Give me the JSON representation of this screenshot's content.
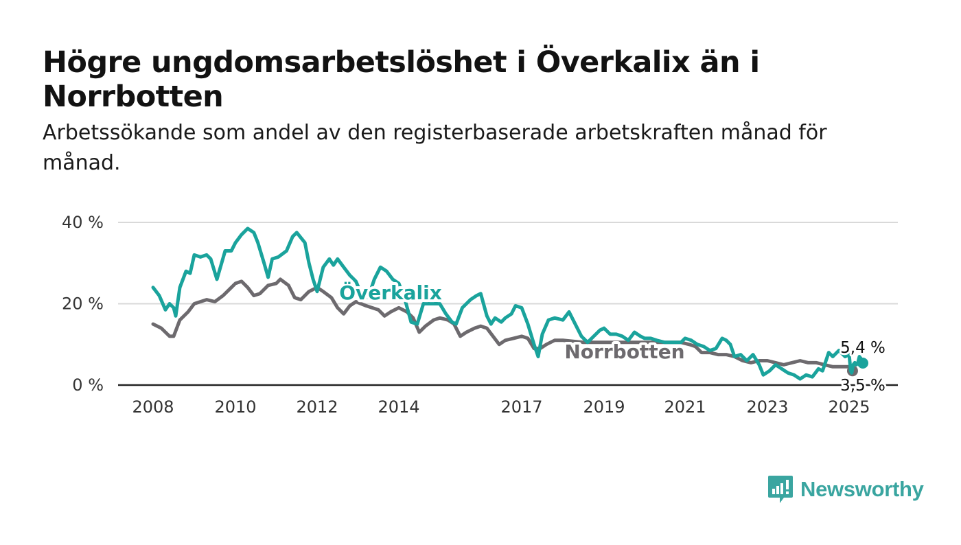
{
  "title": "Högre ungdomsarbetslöshet i Överkalix än i Norrbotten",
  "subtitle": "Arbetssökande som andel av den registerbaserade arbetskraften månad för månad.",
  "brand": {
    "name": "Newsworthy",
    "icon": "newsworthy-logo-icon",
    "color": "#3aa5a0"
  },
  "chart_data": {
    "type": "line",
    "ylim": [
      0,
      40
    ],
    "y_ticks": [
      0,
      20,
      40
    ],
    "y_tick_labels": [
      "0 %",
      "20 %",
      "40 %"
    ],
    "xlim": [
      2008.0,
      2025.5
    ],
    "x_ticks": [
      2008,
      2010,
      2012,
      2014,
      2017,
      2019,
      2021,
      2023,
      2025
    ],
    "grid": true,
    "series": [
      {
        "name": "Norrbotten",
        "color": "#6d6a6e",
        "end_label": "3,5 %",
        "points": [
          [
            2008.0,
            15
          ],
          [
            2008.2,
            14
          ],
          [
            2008.4,
            12
          ],
          [
            2008.5,
            12
          ],
          [
            2008.65,
            16
          ],
          [
            2008.85,
            18
          ],
          [
            2009.0,
            20
          ],
          [
            2009.3,
            21
          ],
          [
            2009.5,
            20.5
          ],
          [
            2009.7,
            22
          ],
          [
            2009.9,
            24
          ],
          [
            2010.0,
            25
          ],
          [
            2010.15,
            25.5
          ],
          [
            2010.3,
            24
          ],
          [
            2010.45,
            22
          ],
          [
            2010.6,
            22.5
          ],
          [
            2010.8,
            24.5
          ],
          [
            2011.0,
            25
          ],
          [
            2011.1,
            26
          ],
          [
            2011.3,
            24.5
          ],
          [
            2011.45,
            21.5
          ],
          [
            2011.6,
            21
          ],
          [
            2011.8,
            23
          ],
          [
            2012.0,
            24
          ],
          [
            2012.15,
            23
          ],
          [
            2012.35,
            21.5
          ],
          [
            2012.5,
            19
          ],
          [
            2012.65,
            17.5
          ],
          [
            2012.8,
            19.5
          ],
          [
            2012.95,
            20.5
          ],
          [
            2013.2,
            19.5
          ],
          [
            2013.5,
            18.5
          ],
          [
            2013.65,
            17
          ],
          [
            2013.8,
            18
          ],
          [
            2014.0,
            19
          ],
          [
            2014.2,
            18
          ],
          [
            2014.35,
            16.5
          ],
          [
            2014.5,
            13
          ],
          [
            2014.65,
            14.5
          ],
          [
            2014.85,
            16
          ],
          [
            2015.0,
            16.5
          ],
          [
            2015.2,
            16
          ],
          [
            2015.35,
            15
          ],
          [
            2015.5,
            12
          ],
          [
            2015.65,
            13
          ],
          [
            2015.85,
            14
          ],
          [
            2016.0,
            14.5
          ],
          [
            2016.15,
            14
          ],
          [
            2016.3,
            12
          ],
          [
            2016.45,
            10
          ],
          [
            2016.6,
            11
          ],
          [
            2016.8,
            11.5
          ],
          [
            2017.0,
            12
          ],
          [
            2017.15,
            11.5
          ],
          [
            2017.3,
            9
          ],
          [
            2017.45,
            9
          ],
          [
            2017.6,
            10
          ],
          [
            2017.8,
            11
          ],
          [
            2018.0,
            11
          ],
          [
            2018.5,
            10.5
          ],
          [
            2019.0,
            10.5
          ],
          [
            2019.5,
            10.5
          ],
          [
            2020.0,
            10.5
          ],
          [
            2020.5,
            10.5
          ],
          [
            2020.9,
            10.5
          ],
          [
            2021.1,
            10
          ],
          [
            2021.25,
            9.5
          ],
          [
            2021.4,
            8
          ],
          [
            2021.6,
            8
          ],
          [
            2021.8,
            7.5
          ],
          [
            2022.0,
            7.5
          ],
          [
            2022.2,
            7
          ],
          [
            2022.4,
            6
          ],
          [
            2022.6,
            5.5
          ],
          [
            2022.8,
            6
          ],
          [
            2023.0,
            6
          ],
          [
            2023.2,
            5.5
          ],
          [
            2023.4,
            5
          ],
          [
            2023.6,
            5.5
          ],
          [
            2023.8,
            6
          ],
          [
            2024.0,
            5.5
          ],
          [
            2024.2,
            5.5
          ],
          [
            2024.4,
            5
          ],
          [
            2024.6,
            4.5
          ],
          [
            2024.8,
            4.5
          ],
          [
            2025.0,
            4.5
          ],
          [
            2025.2,
            3.8
          ],
          [
            2025.33,
            3.5
          ]
        ]
      },
      {
        "name": "Överkalix",
        "color": "#1aa39c",
        "end_label": "5,4 %",
        "points": [
          [
            2008.0,
            24
          ],
          [
            2008.15,
            22
          ],
          [
            2008.3,
            18.5
          ],
          [
            2008.4,
            20
          ],
          [
            2008.5,
            19
          ],
          [
            2008.55,
            17
          ],
          [
            2008.65,
            24
          ],
          [
            2008.8,
            28
          ],
          [
            2008.9,
            27.5
          ],
          [
            2009.0,
            32
          ],
          [
            2009.15,
            31.5
          ],
          [
            2009.3,
            32
          ],
          [
            2009.4,
            31
          ],
          [
            2009.55,
            26
          ],
          [
            2009.75,
            33
          ],
          [
            2009.9,
            33
          ],
          [
            2010.0,
            35
          ],
          [
            2010.15,
            37
          ],
          [
            2010.3,
            38.5
          ],
          [
            2010.45,
            37.5
          ],
          [
            2010.55,
            35
          ],
          [
            2010.7,
            30
          ],
          [
            2010.8,
            26.5
          ],
          [
            2010.9,
            31
          ],
          [
            2011.05,
            31.5
          ],
          [
            2011.25,
            33
          ],
          [
            2011.4,
            36.5
          ],
          [
            2011.5,
            37.5
          ],
          [
            2011.7,
            35
          ],
          [
            2011.8,
            30
          ],
          [
            2011.9,
            26
          ],
          [
            2012.0,
            23
          ],
          [
            2012.15,
            29
          ],
          [
            2012.3,
            31
          ],
          [
            2012.4,
            29.5
          ],
          [
            2012.5,
            31
          ],
          [
            2012.65,
            29
          ],
          [
            2012.8,
            27
          ],
          [
            2012.95,
            25.5
          ],
          [
            2013.1,
            22
          ],
          [
            2013.25,
            21.5
          ],
          [
            2013.4,
            26
          ],
          [
            2013.55,
            29
          ],
          [
            2013.7,
            28
          ],
          [
            2013.85,
            26
          ],
          [
            2014.0,
            25
          ],
          [
            2014.15,
            21
          ],
          [
            2014.3,
            15.5
          ],
          [
            2014.45,
            15
          ],
          [
            2014.6,
            20
          ],
          [
            2014.8,
            20
          ],
          [
            2015.0,
            20
          ],
          [
            2015.15,
            17.5
          ],
          [
            2015.3,
            15.5
          ],
          [
            2015.4,
            15
          ],
          [
            2015.55,
            19
          ],
          [
            2015.75,
            21
          ],
          [
            2015.9,
            22
          ],
          [
            2016.0,
            22.5
          ],
          [
            2016.15,
            17
          ],
          [
            2016.25,
            15
          ],
          [
            2016.35,
            16.5
          ],
          [
            2016.5,
            15.5
          ],
          [
            2016.6,
            16.5
          ],
          [
            2016.75,
            17.5
          ],
          [
            2016.85,
            19.5
          ],
          [
            2017.0,
            19
          ],
          [
            2017.15,
            15
          ],
          [
            2017.3,
            10
          ],
          [
            2017.4,
            7
          ],
          [
            2017.5,
            12.5
          ],
          [
            2017.65,
            16
          ],
          [
            2017.8,
            16.5
          ],
          [
            2018.0,
            16
          ],
          [
            2018.15,
            18
          ],
          [
            2018.3,
            15
          ],
          [
            2018.45,
            12
          ],
          [
            2018.6,
            10.5
          ],
          [
            2018.75,
            12
          ],
          [
            2018.9,
            13.5
          ],
          [
            2019.0,
            14
          ],
          [
            2019.15,
            12.5
          ],
          [
            2019.3,
            12.5
          ],
          [
            2019.45,
            12
          ],
          [
            2019.6,
            11
          ],
          [
            2019.75,
            13
          ],
          [
            2019.9,
            12
          ],
          [
            2020.0,
            11.5
          ],
          [
            2020.15,
            11.5
          ],
          [
            2020.3,
            11
          ],
          [
            2020.5,
            10.5
          ],
          [
            2020.7,
            10.5
          ],
          [
            2020.9,
            10.5
          ],
          [
            2021.0,
            11.5
          ],
          [
            2021.15,
            11
          ],
          [
            2021.3,
            10
          ],
          [
            2021.45,
            9.5
          ],
          [
            2021.6,
            8.5
          ],
          [
            2021.75,
            9
          ],
          [
            2021.9,
            11.5
          ],
          [
            2022.0,
            11
          ],
          [
            2022.1,
            10
          ],
          [
            2022.2,
            7
          ],
          [
            2022.35,
            7.5
          ],
          [
            2022.5,
            6
          ],
          [
            2022.65,
            7.5
          ],
          [
            2022.8,
            5
          ],
          [
            2022.9,
            2.5
          ],
          [
            2023.05,
            3.5
          ],
          [
            2023.2,
            5
          ],
          [
            2023.35,
            4
          ],
          [
            2023.5,
            3
          ],
          [
            2023.65,
            2.5
          ],
          [
            2023.8,
            1.5
          ],
          [
            2023.95,
            2.5
          ],
          [
            2024.1,
            2
          ],
          [
            2024.25,
            4
          ],
          [
            2024.35,
            3.5
          ],
          [
            2024.5,
            8
          ],
          [
            2024.6,
            7
          ],
          [
            2024.75,
            8.5
          ],
          [
            2024.9,
            7
          ],
          [
            2025.0,
            7.5
          ],
          [
            2025.15,
            3.5
          ],
          [
            2025.25,
            3
          ],
          [
            2025.4,
            5
          ],
          [
            2025.55,
            5.5
          ],
          [
            2025.7,
            5
          ],
          [
            2025.85,
            5.5
          ],
          [
            2026.0,
            7
          ],
          [
            2026.15,
            6.5
          ],
          [
            2026.33,
            5.4
          ]
        ]
      }
    ]
  }
}
